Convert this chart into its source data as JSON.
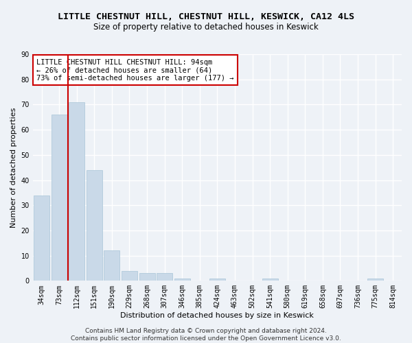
{
  "title": "LITTLE CHESTNUT HILL, CHESTNUT HILL, KESWICK, CA12 4LS",
  "subtitle": "Size of property relative to detached houses in Keswick",
  "xlabel": "Distribution of detached houses by size in Keswick",
  "ylabel": "Number of detached properties",
  "bar_color": "#c9d9e8",
  "bar_edge_color": "#a8c4d8",
  "categories": [
    "34sqm",
    "73sqm",
    "112sqm",
    "151sqm",
    "190sqm",
    "229sqm",
    "268sqm",
    "307sqm",
    "346sqm",
    "385sqm",
    "424sqm",
    "463sqm",
    "502sqm",
    "541sqm",
    "580sqm",
    "619sqm",
    "658sqm",
    "697sqm",
    "736sqm",
    "775sqm",
    "814sqm"
  ],
  "values": [
    34,
    66,
    71,
    44,
    12,
    4,
    3,
    3,
    1,
    0,
    1,
    0,
    0,
    1,
    0,
    0,
    0,
    0,
    0,
    1,
    0
  ],
  "ylim": [
    0,
    90
  ],
  "yticks": [
    0,
    10,
    20,
    30,
    40,
    50,
    60,
    70,
    80,
    90
  ],
  "property_line_color": "#cc0000",
  "annotation_text": "LITTLE CHESTNUT HILL CHESTNUT HILL: 94sqm\n← 26% of detached houses are smaller (64)\n73% of semi-detached houses are larger (177) →",
  "annotation_box_color": "#ffffff",
  "annotation_box_edge_color": "#cc0000",
  "footer_text": "Contains HM Land Registry data © Crown copyright and database right 2024.\nContains public sector information licensed under the Open Government Licence v3.0.",
  "background_color": "#eef2f7",
  "plot_background_color": "#eef2f7",
  "grid_color": "#ffffff",
  "title_fontsize": 9.5,
  "subtitle_fontsize": 8.5,
  "axis_label_fontsize": 8,
  "tick_fontsize": 7,
  "annotation_fontsize": 7.5,
  "footer_fontsize": 6.5
}
